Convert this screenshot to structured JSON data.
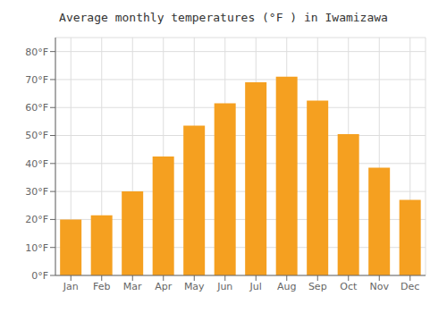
{
  "chart_data": {
    "type": "bar",
    "title": "Average monthly temperatures (°F ) in Iwamizawa",
    "categories": [
      "Jan",
      "Feb",
      "Mar",
      "Apr",
      "May",
      "Jun",
      "Jul",
      "Aug",
      "Sep",
      "Oct",
      "Nov",
      "Dec"
    ],
    "values": [
      20,
      21.5,
      30,
      42.5,
      53.5,
      61.5,
      69,
      71,
      62.5,
      50.5,
      38.5,
      27
    ],
    "color": "#F5A020",
    "ylim": [
      0,
      85
    ],
    "yticks": [
      {
        "value": 0,
        "label": "0°F"
      },
      {
        "value": 10,
        "label": "10°F"
      },
      {
        "value": 20,
        "label": "20°F"
      },
      {
        "value": 30,
        "label": "30°F"
      },
      {
        "value": 40,
        "label": "40°F"
      },
      {
        "value": 50,
        "label": "50°F"
      },
      {
        "value": 60,
        "label": "60°F"
      },
      {
        "value": 70,
        "label": "70°F"
      },
      {
        "value": 80,
        "label": "80°F"
      }
    ],
    "grid": true
  }
}
